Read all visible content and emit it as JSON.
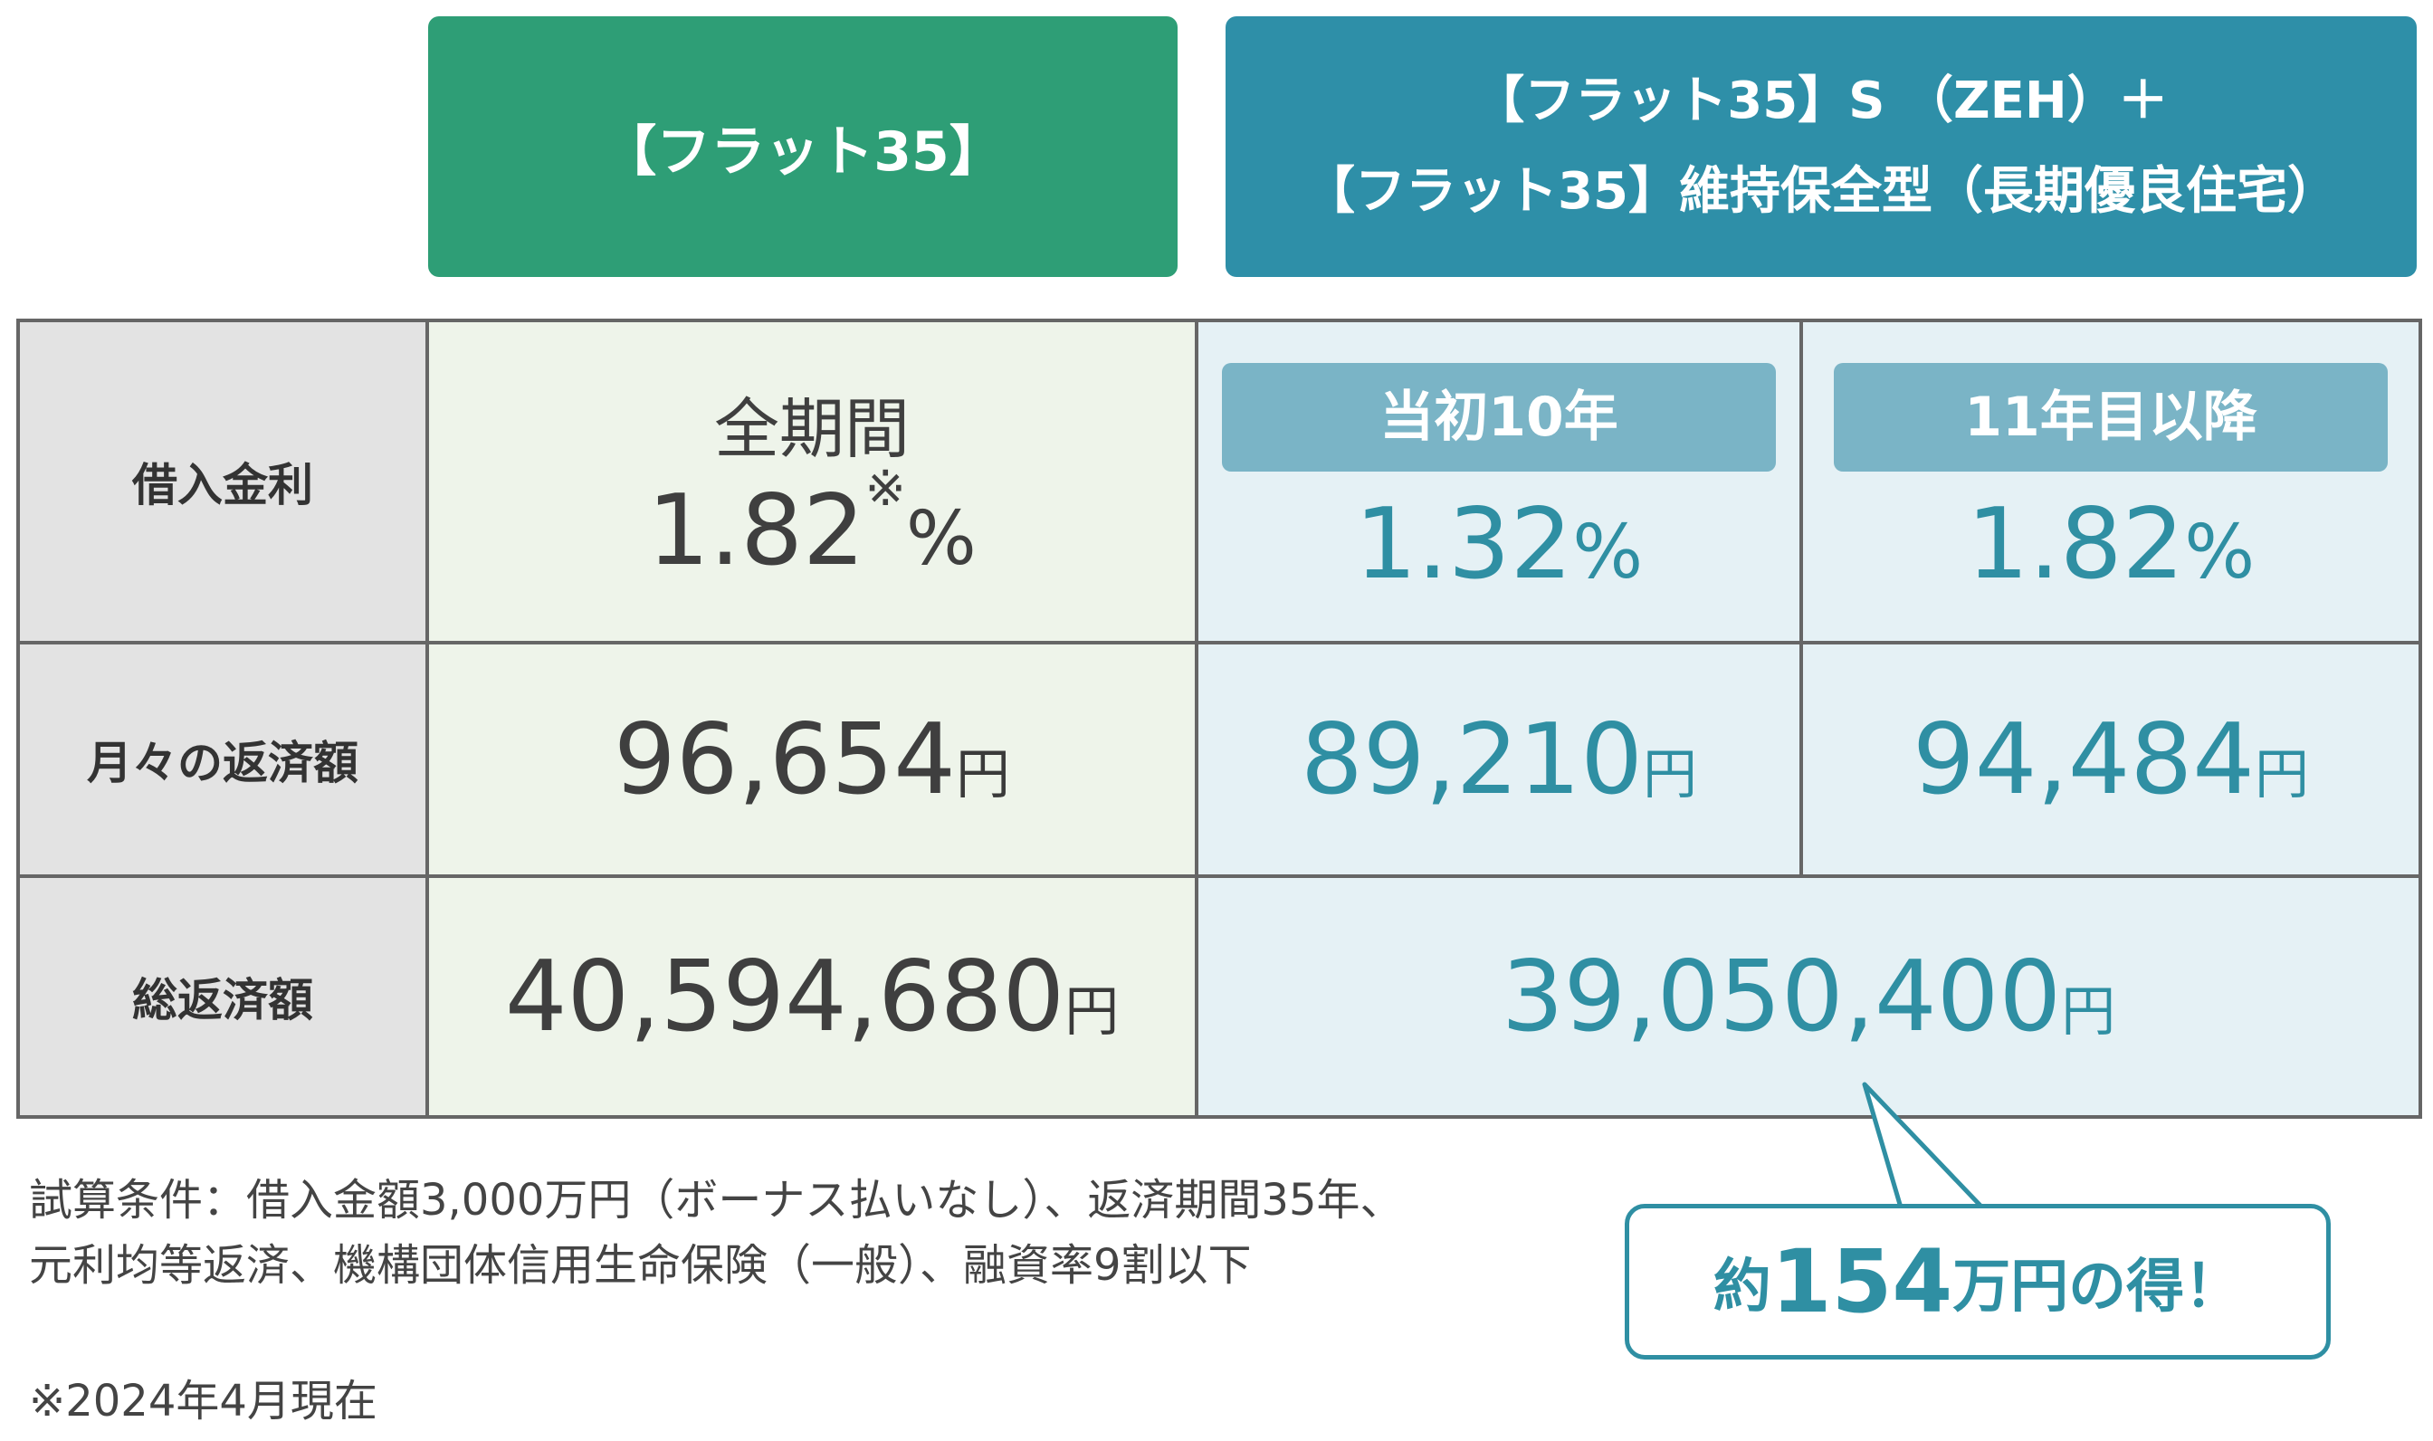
{
  "headers": {
    "flat35": "【フラット35】",
    "flat35s_line1": "【フラット35】S （ZEH）＋",
    "flat35s_line2": "【フラット35】維持保全型（長期優良住宅）"
  },
  "rows": {
    "rate_label": "借入金利",
    "monthly_label": "月々の返済額",
    "total_label": "総返済額"
  },
  "flat35": {
    "period": "全期間",
    "rate": "1.82",
    "rate_mark": "※",
    "rate_unit": "%",
    "monthly": "96,654",
    "monthly_unit": "円",
    "total": "40,594,680",
    "total_unit": "円"
  },
  "flat35s": {
    "period1": "当初10年",
    "period2": "11年目以降",
    "rate1": "1.32",
    "rate2": "1.82",
    "rate_unit": "%",
    "monthly1": "89,210",
    "monthly2": "94,484",
    "monthly_unit": "円",
    "total": "39,050,400",
    "total_unit": "円"
  },
  "conditions": {
    "line1": "試算条件：借入金額3,000万円（ボーナス払いなし）、返済期間35年、",
    "line2": "元利均等返済、機構団体信用生命保険（一般）、融資率9割以下",
    "note": "※2024年4月現在"
  },
  "savings": {
    "prefix": "約",
    "amount": "154",
    "suffix": "万円の得！"
  },
  "colors": {
    "green": "#2e9e76",
    "teal": "#2e8fa8",
    "badge": "#7ab4c6",
    "value_blue": "#2f8fa3"
  }
}
